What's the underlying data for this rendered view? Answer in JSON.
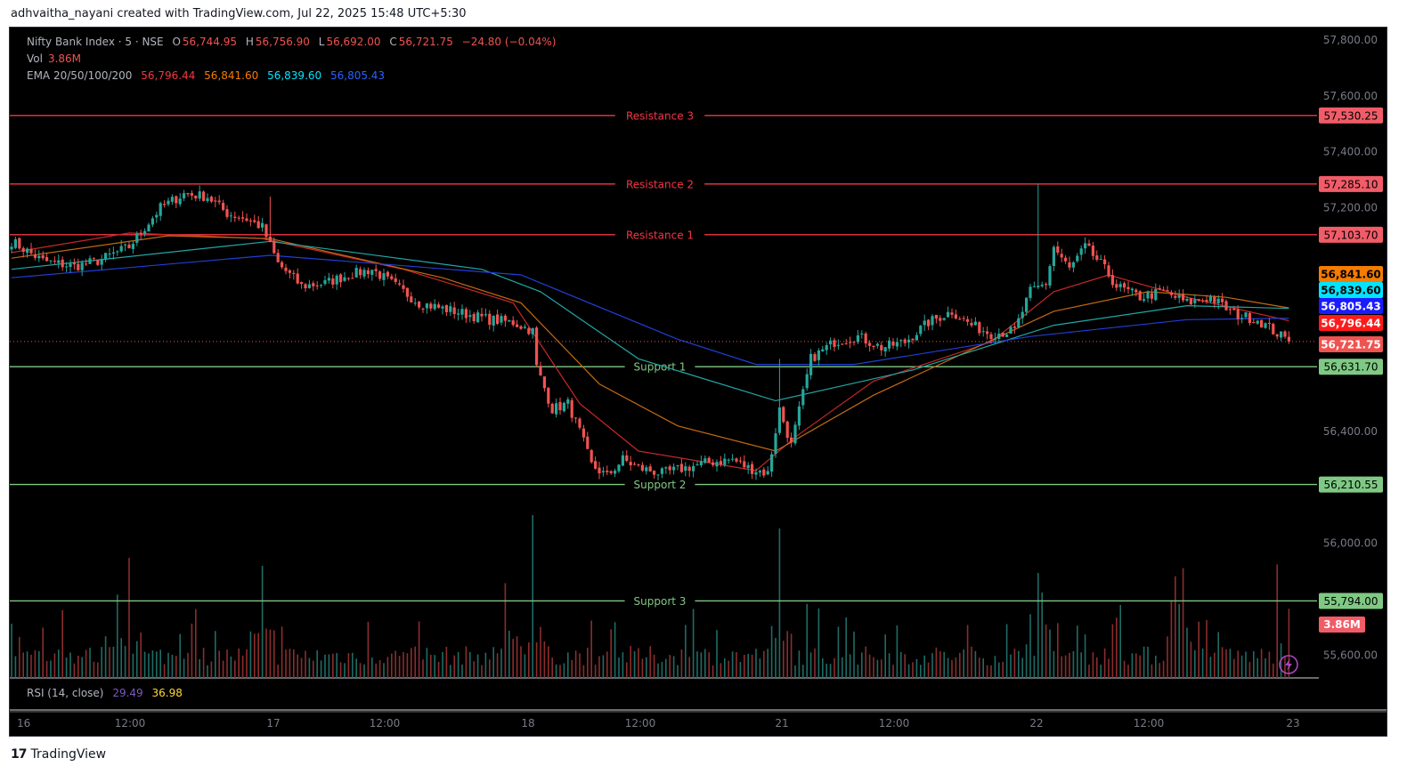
{
  "header": {
    "attribution": "adhvaitha_nayani created with TradingView.com, Jul 22, 2025 15:48 UTC+5:30"
  },
  "legend": {
    "symbol": "Nifty Bank Index · 5 · NSE",
    "open_label": "O",
    "open": "56,744.95",
    "high_label": "H",
    "high": "56,756.90",
    "low_label": "L",
    "low": "56,692.00",
    "close_label": "C",
    "close": "56,721.75",
    "change": "−24.80 (−0.04%)",
    "vol_label": "Vol",
    "vol": "3.86M",
    "ema_label": "EMA 20/50/100/200",
    "ema20": "56,796.44",
    "ema50": "56,841.60",
    "ema100": "56,839.60",
    "ema200": "56,805.43",
    "rsi_label": "RSI (14, close)",
    "rsi": "29.49",
    "rsi_ma": "36.98"
  },
  "colors": {
    "up": "#26a69a",
    "down": "#ef5350",
    "resistance": "#f23645",
    "support": "#81c784",
    "ema20": "#f23645",
    "ema50": "#f57c00",
    "ema100": "#00bcd4",
    "ema200": "#2962ff",
    "background": "#000000"
  },
  "footer": {
    "brand": "TradingView",
    "logo": "tradingview-logo-icon"
  },
  "chart_data": {
    "type": "candlestick",
    "price_axis": [
      "57,800.00",
      "57,600.00",
      "57,400.00",
      "57,200.00",
      "56,400.00",
      "56,000.00",
      "55,600.00"
    ],
    "ylim": [
      55500,
      57850
    ],
    "time_axis": [
      "16",
      "12:00",
      "17",
      "12:00",
      "18",
      "12:00",
      "21",
      "12:00",
      "22",
      "12:00",
      "23"
    ],
    "levels": [
      {
        "name": "Resistance 3",
        "value": 57530.25,
        "label": "57,530.25",
        "kind": "resistance"
      },
      {
        "name": "Resistance 2",
        "value": 57285.1,
        "label": "57,285.10",
        "kind": "resistance"
      },
      {
        "name": "Resistance 1",
        "value": 57103.7,
        "label": "57,103.70",
        "kind": "resistance"
      },
      {
        "name": "Support 1",
        "value": 56631.7,
        "label": "56,631.70",
        "kind": "support"
      },
      {
        "name": "Support 2",
        "value": 56210.55,
        "label": "56,210.55",
        "kind": "support"
      },
      {
        "name": "Support 3",
        "value": 55794.0,
        "label": "55,794.00",
        "kind": "support"
      }
    ],
    "price_tags": [
      {
        "label": "56,841.60",
        "value": 56841.6,
        "color": "#f57c00"
      },
      {
        "label": "56,839.60",
        "value": 56839.6,
        "color": "#00e5ff"
      },
      {
        "label": "56,805.43",
        "value": 56805.43,
        "color": "#1a1aff"
      },
      {
        "label": "56,796.44",
        "value": 56796.44,
        "color": "#ff1a1a"
      },
      {
        "label": "56,721.75",
        "value": 56721.75,
        "color": "#ef5350"
      }
    ],
    "volume_tag": "3.86M",
    "close_path": [
      [
        0,
        57080
      ],
      [
        8,
        57010
      ],
      [
        16,
        56990
      ],
      [
        22,
        57010
      ],
      [
        30,
        57060
      ],
      [
        38,
        57200
      ],
      [
        44,
        57250
      ],
      [
        50,
        57240
      ],
      [
        55,
        57180
      ],
      [
        60,
        57160
      ],
      [
        64,
        57130
      ],
      [
        68,
        57000
      ],
      [
        74,
        56920
      ],
      [
        80,
        56930
      ],
      [
        86,
        56960
      ],
      [
        92,
        56980
      ],
      [
        98,
        56920
      ],
      [
        104,
        56860
      ],
      [
        110,
        56840
      ],
      [
        116,
        56820
      ],
      [
        122,
        56800
      ],
      [
        128,
        56790
      ],
      [
        133,
        56760
      ],
      [
        134,
        56630
      ],
      [
        138,
        56480
      ],
      [
        142,
        56500
      ],
      [
        145,
        56400
      ],
      [
        148,
        56280
      ],
      [
        152,
        56240
      ],
      [
        156,
        56300
      ],
      [
        160,
        56270
      ],
      [
        166,
        56250
      ],
      [
        172,
        56270
      ],
      [
        178,
        56290
      ],
      [
        184,
        56300
      ],
      [
        188,
        56270
      ],
      [
        193,
        56250
      ],
      [
        196,
        56480
      ],
      [
        199,
        56350
      ],
      [
        204,
        56660
      ],
      [
        210,
        56720
      ],
      [
        216,
        56740
      ],
      [
        222,
        56700
      ],
      [
        228,
        56720
      ],
      [
        234,
        56790
      ],
      [
        240,
        56830
      ],
      [
        245,
        56780
      ],
      [
        250,
        56750
      ],
      [
        256,
        56760
      ],
      [
        260,
        56900
      ],
      [
        264,
        56930
      ],
      [
        266,
        57060
      ],
      [
        270,
        56980
      ],
      [
        274,
        57060
      ],
      [
        278,
        57000
      ],
      [
        282,
        56920
      ],
      [
        288,
        56880
      ],
      [
        294,
        56900
      ],
      [
        300,
        56860
      ],
      [
        306,
        56880
      ],
      [
        312,
        56820
      ],
      [
        318,
        56800
      ],
      [
        322,
        56760
      ],
      [
        326,
        56721.75
      ]
    ],
    "ema_paths": {
      "ema20": [
        [
          0,
          57040
        ],
        [
          30,
          57110
        ],
        [
          64,
          57090
        ],
        [
          100,
          56980
        ],
        [
          128,
          56860
        ],
        [
          145,
          56500
        ],
        [
          160,
          56330
        ],
        [
          190,
          56260
        ],
        [
          200,
          56380
        ],
        [
          220,
          56580
        ],
        [
          250,
          56720
        ],
        [
          266,
          56900
        ],
        [
          280,
          56960
        ],
        [
          300,
          56880
        ],
        [
          326,
          56796
        ]
      ],
      "ema50": [
        [
          0,
          57020
        ],
        [
          40,
          57100
        ],
        [
          66,
          57090
        ],
        [
          110,
          56950
        ],
        [
          130,
          56860
        ],
        [
          150,
          56570
        ],
        [
          170,
          56420
        ],
        [
          195,
          56330
        ],
        [
          220,
          56530
        ],
        [
          266,
          56830
        ],
        [
          290,
          56900
        ],
        [
          310,
          56880
        ],
        [
          326,
          56842
        ]
      ],
      "ema100": [
        [
          0,
          56980
        ],
        [
          66,
          57080
        ],
        [
          120,
          56980
        ],
        [
          135,
          56900
        ],
        [
          160,
          56660
        ],
        [
          195,
          56510
        ],
        [
          230,
          56620
        ],
        [
          266,
          56780
        ],
        [
          300,
          56850
        ],
        [
          326,
          56840
        ]
      ],
      "ema200": [
        [
          0,
          56950
        ],
        [
          66,
          57030
        ],
        [
          130,
          56960
        ],
        [
          170,
          56730
        ],
        [
          190,
          56640
        ],
        [
          215,
          56640
        ],
        [
          260,
          56740
        ],
        [
          300,
          56800
        ],
        [
          326,
          56805
        ]
      ]
    }
  }
}
